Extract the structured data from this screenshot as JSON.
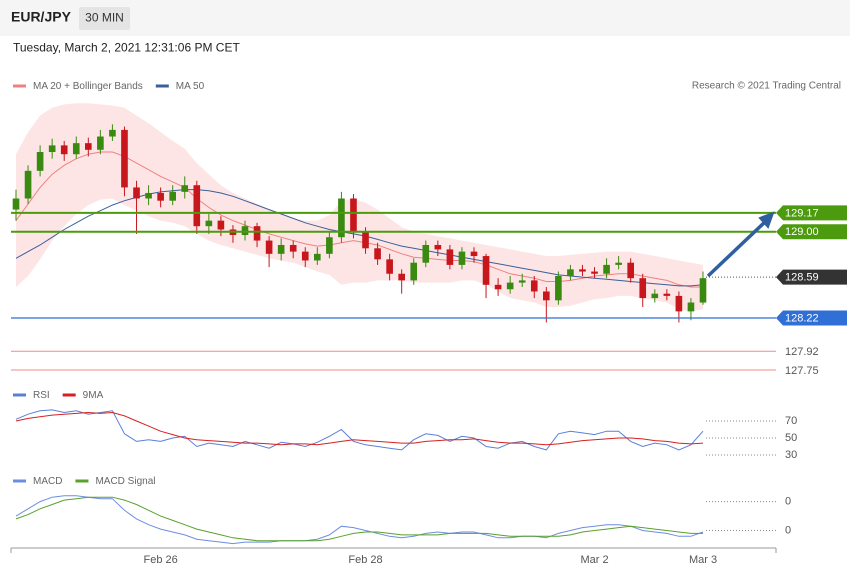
{
  "header": {
    "symbol": "EUR/JPY",
    "timeframe": "30 MIN",
    "datetime": "Tuesday, March 2, 2021 12:31:06 PM CET"
  },
  "chart_data": {
    "type": "candlestick",
    "credit": "Research © 2021 Trading Central",
    "categories": [
      null,
      null,
      null,
      null,
      null,
      null,
      null,
      null,
      null,
      null,
      null,
      null,
      "Feb 26",
      null,
      null,
      null,
      null,
      null,
      null,
      null,
      null,
      null,
      null,
      null,
      null,
      null,
      null,
      null,
      null,
      "Feb 28",
      null,
      null,
      null,
      null,
      null,
      null,
      null,
      null,
      null,
      null,
      null,
      null,
      null,
      null,
      null,
      null,
      null,
      null,
      "Mar 2",
      null,
      null,
      null,
      null,
      null,
      null,
      null,
      null,
      "Mar 3"
    ],
    "candles": {
      "up_color": "#3a8a12",
      "down_color": "#c8161d",
      "open": [
        129.2,
        129.3,
        129.55,
        129.72,
        129.78,
        129.7,
        129.8,
        129.74,
        129.86,
        129.92,
        129.4,
        129.3,
        129.35,
        129.28,
        129.36,
        129.42,
        129.05,
        129.1,
        129.02,
        128.97,
        129.05,
        128.92,
        128.8,
        128.88,
        128.82,
        128.74,
        128.8,
        128.95,
        129.3,
        129.0,
        128.85,
        128.75,
        128.62,
        128.56,
        128.72,
        128.88,
        128.84,
        128.7,
        128.82,
        128.78,
        128.52,
        128.48,
        128.54,
        128.56,
        128.46,
        128.38,
        128.6,
        128.66,
        128.64,
        128.62,
        128.7,
        128.72,
        128.58,
        128.4,
        128.44,
        128.42,
        128.28,
        128.36
      ],
      "high": [
        129.38,
        129.6,
        129.78,
        129.84,
        129.82,
        129.86,
        129.85,
        129.92,
        129.97,
        129.95,
        129.46,
        129.42,
        129.4,
        129.42,
        129.5,
        129.46,
        129.16,
        129.14,
        129.06,
        129.1,
        129.08,
        128.96,
        128.94,
        128.92,
        128.86,
        128.86,
        129.0,
        129.36,
        129.34,
        129.04,
        128.9,
        128.8,
        128.66,
        128.76,
        128.92,
        128.92,
        128.88,
        128.86,
        128.86,
        128.8,
        128.58,
        128.6,
        128.62,
        128.6,
        128.5,
        128.64,
        128.7,
        128.7,
        128.68,
        128.76,
        128.78,
        128.76,
        128.62,
        128.48,
        128.48,
        128.46,
        128.4,
        128.64
      ],
      "low": [
        129.1,
        129.25,
        129.5,
        129.66,
        129.64,
        129.66,
        129.68,
        129.7,
        129.82,
        129.32,
        128.98,
        129.24,
        129.22,
        129.24,
        129.3,
        128.98,
        128.98,
        128.96,
        128.9,
        128.92,
        128.86,
        128.68,
        128.74,
        128.76,
        128.68,
        128.7,
        128.76,
        128.9,
        128.94,
        128.8,
        128.7,
        128.56,
        128.44,
        128.52,
        128.68,
        128.78,
        128.66,
        128.66,
        128.72,
        128.4,
        128.42,
        128.44,
        128.5,
        128.4,
        128.18,
        128.34,
        128.56,
        128.6,
        128.58,
        128.58,
        128.66,
        128.54,
        128.32,
        128.36,
        128.38,
        128.18,
        128.2,
        128.34
      ],
      "close": [
        129.3,
        129.55,
        129.72,
        129.78,
        129.7,
        129.8,
        129.74,
        129.86,
        129.92,
        129.4,
        129.3,
        129.35,
        129.28,
        129.36,
        129.42,
        129.05,
        129.1,
        129.02,
        128.97,
        129.05,
        128.92,
        128.8,
        128.88,
        128.82,
        128.74,
        128.8,
        128.95,
        129.3,
        129.0,
        128.85,
        128.75,
        128.62,
        128.56,
        128.72,
        128.88,
        128.84,
        128.7,
        128.82,
        128.78,
        128.52,
        128.48,
        128.54,
        128.56,
        128.46,
        128.38,
        128.6,
        128.66,
        128.64,
        128.62,
        128.7,
        128.72,
        128.58,
        128.4,
        128.44,
        128.42,
        128.28,
        128.36,
        128.58
      ]
    },
    "series": [
      {
        "name": "MA 20 + Bollinger Bands",
        "color": "#f08080",
        "band_color": "#fde0e0",
        "values": [
          129.1,
          129.25,
          129.4,
          129.52,
          129.6,
          129.66,
          129.7,
          129.72,
          129.72,
          129.68,
          129.62,
          129.56,
          129.5,
          129.45,
          129.4,
          129.3,
          129.22,
          129.15,
          129.1,
          129.06,
          129.02,
          128.98,
          128.95,
          128.92,
          128.89,
          128.87,
          128.88,
          128.9,
          128.92,
          128.9,
          128.88,
          128.84,
          128.8,
          128.77,
          128.76,
          128.75,
          128.74,
          128.74,
          128.73,
          128.7,
          128.66,
          128.62,
          128.6,
          128.58,
          128.55,
          128.55,
          128.56,
          128.58,
          128.6,
          128.61,
          128.62,
          128.62,
          128.6,
          128.58,
          128.56,
          128.52,
          128.5,
          128.5
        ],
        "upper": [
          129.7,
          129.9,
          130.05,
          130.12,
          130.15,
          130.16,
          130.16,
          130.15,
          130.14,
          130.12,
          130.05,
          129.98,
          129.9,
          129.82,
          129.75,
          129.62,
          129.52,
          129.42,
          129.35,
          129.3,
          129.25,
          129.2,
          129.16,
          129.12,
          129.1,
          129.1,
          129.15,
          129.28,
          129.3,
          129.26,
          129.2,
          129.12,
          129.04,
          129.0,
          128.98,
          128.96,
          128.94,
          128.92,
          128.9,
          128.88,
          128.86,
          128.84,
          128.82,
          128.8,
          128.78,
          128.78,
          128.79,
          128.8,
          128.81,
          128.82,
          128.82,
          128.82,
          128.8,
          128.78,
          128.76,
          128.74,
          128.72,
          128.7
        ],
        "lower": [
          128.5,
          128.6,
          128.75,
          128.92,
          129.05,
          129.16,
          129.24,
          129.29,
          129.3,
          129.24,
          129.19,
          129.14,
          129.1,
          129.08,
          129.05,
          128.98,
          128.92,
          128.88,
          128.85,
          128.82,
          128.79,
          128.76,
          128.74,
          128.72,
          128.68,
          128.64,
          128.61,
          128.52,
          128.54,
          128.54,
          128.56,
          128.56,
          128.56,
          128.54,
          128.54,
          128.54,
          128.54,
          128.56,
          128.56,
          128.52,
          128.46,
          128.4,
          128.38,
          128.36,
          128.32,
          128.32,
          128.33,
          128.36,
          128.39,
          128.4,
          128.42,
          128.42,
          128.4,
          128.38,
          128.36,
          128.3,
          128.28,
          128.3
        ]
      },
      {
        "name": "MA 50",
        "color": "#3a5f9a",
        "values": [
          128.76,
          128.82,
          128.88,
          128.95,
          129.02,
          129.08,
          129.14,
          129.19,
          129.24,
          129.28,
          129.31,
          129.34,
          129.36,
          129.37,
          129.38,
          129.38,
          129.37,
          129.35,
          129.32,
          129.28,
          129.24,
          129.2,
          129.16,
          129.12,
          129.08,
          129.05,
          129.02,
          129.0,
          128.98,
          128.96,
          128.93,
          128.9,
          128.87,
          128.85,
          128.83,
          128.81,
          128.79,
          128.77,
          128.75,
          128.73,
          128.71,
          128.69,
          128.67,
          128.65,
          128.63,
          128.61,
          128.6,
          128.59,
          128.58,
          128.57,
          128.56,
          128.55,
          128.54,
          128.53,
          128.52,
          128.51,
          128.51,
          128.52
        ]
      }
    ],
    "ylim": [
      127.66,
      130.19
    ],
    "levels": [
      {
        "value": 129.17,
        "color": "#4c9a0e",
        "style": "tag"
      },
      {
        "value": 129.0,
        "label": "129.00",
        "color": "#4c9a0e",
        "style": "tag"
      },
      {
        "value": 128.59,
        "color": "#333333",
        "style": "current"
      },
      {
        "value": 128.22,
        "color": "#2f6fd6",
        "style": "tag"
      },
      {
        "value": 127.92,
        "color": "#e03030",
        "style": "text"
      },
      {
        "value": 127.75,
        "color": "#e03030",
        "style": "text"
      }
    ],
    "rsi": {
      "series": [
        {
          "name": "RSI",
          "color": "#5b7fd8",
          "values": [
            72,
            78,
            82,
            83,
            80,
            82,
            78,
            80,
            82,
            55,
            46,
            48,
            46,
            50,
            52,
            40,
            44,
            42,
            40,
            46,
            42,
            38,
            45,
            43,
            40,
            45,
            52,
            60,
            46,
            42,
            40,
            38,
            36,
            48,
            55,
            53,
            46,
            52,
            50,
            40,
            38,
            44,
            46,
            40,
            36,
            55,
            58,
            56,
            54,
            58,
            58,
            46,
            40,
            44,
            42,
            36,
            42,
            58
          ]
        },
        {
          "name": "9MA",
          "color": "#d62020",
          "values": [
            70,
            73,
            75,
            77,
            78,
            79,
            80,
            79,
            80,
            76,
            70,
            64,
            58,
            54,
            50,
            48,
            47,
            46,
            45,
            44,
            44,
            43,
            42,
            43,
            43,
            42,
            44,
            46,
            48,
            47,
            46,
            45,
            44,
            44,
            46,
            47,
            48,
            48,
            49,
            47,
            45,
            44,
            44,
            43,
            42,
            43,
            45,
            47,
            48,
            49,
            50,
            50,
            49,
            47,
            46,
            44,
            43,
            44
          ]
        }
      ],
      "ylim": [
        20,
        90
      ],
      "yticks": [
        70,
        50,
        30
      ]
    },
    "macd": {
      "series": [
        {
          "name": "MACD",
          "color": "#6c8ee0",
          "values": [
            0.1,
            0.15,
            0.2,
            0.23,
            0.24,
            0.24,
            0.23,
            0.22,
            0.22,
            0.14,
            0.08,
            0.04,
            0.01,
            -0.01,
            -0.03,
            -0.06,
            -0.07,
            -0.08,
            -0.09,
            -0.08,
            -0.08,
            -0.08,
            -0.07,
            -0.07,
            -0.07,
            -0.06,
            -0.03,
            0.03,
            0.02,
            0.0,
            -0.02,
            -0.04,
            -0.05,
            -0.04,
            -0.02,
            -0.01,
            -0.02,
            -0.01,
            -0.01,
            -0.03,
            -0.05,
            -0.05,
            -0.04,
            -0.04,
            -0.05,
            -0.02,
            0.0,
            0.02,
            0.03,
            0.04,
            0.04,
            0.03,
            0.0,
            -0.01,
            -0.02,
            -0.04,
            -0.04,
            -0.01
          ]
        },
        {
          "name": "MACD Signal",
          "color": "#5aa02c",
          "values": [
            0.08,
            0.11,
            0.15,
            0.18,
            0.21,
            0.22,
            0.23,
            0.23,
            0.23,
            0.21,
            0.18,
            0.14,
            0.1,
            0.07,
            0.04,
            0.01,
            -0.01,
            -0.03,
            -0.05,
            -0.06,
            -0.07,
            -0.07,
            -0.07,
            -0.07,
            -0.07,
            -0.07,
            -0.06,
            -0.04,
            -0.02,
            -0.01,
            -0.01,
            -0.02,
            -0.03,
            -0.03,
            -0.03,
            -0.03,
            -0.02,
            -0.02,
            -0.02,
            -0.02,
            -0.03,
            -0.04,
            -0.04,
            -0.04,
            -0.04,
            -0.04,
            -0.03,
            -0.01,
            0.0,
            0.01,
            0.02,
            0.03,
            0.02,
            0.01,
            0.0,
            -0.01,
            -0.02,
            -0.02
          ]
        }
      ],
      "ylim": [
        -0.1,
        0.28
      ],
      "yticks": [
        {
          "value": 0.2,
          "label": "0"
        },
        {
          "value": 0,
          "label": "0"
        }
      ]
    }
  }
}
